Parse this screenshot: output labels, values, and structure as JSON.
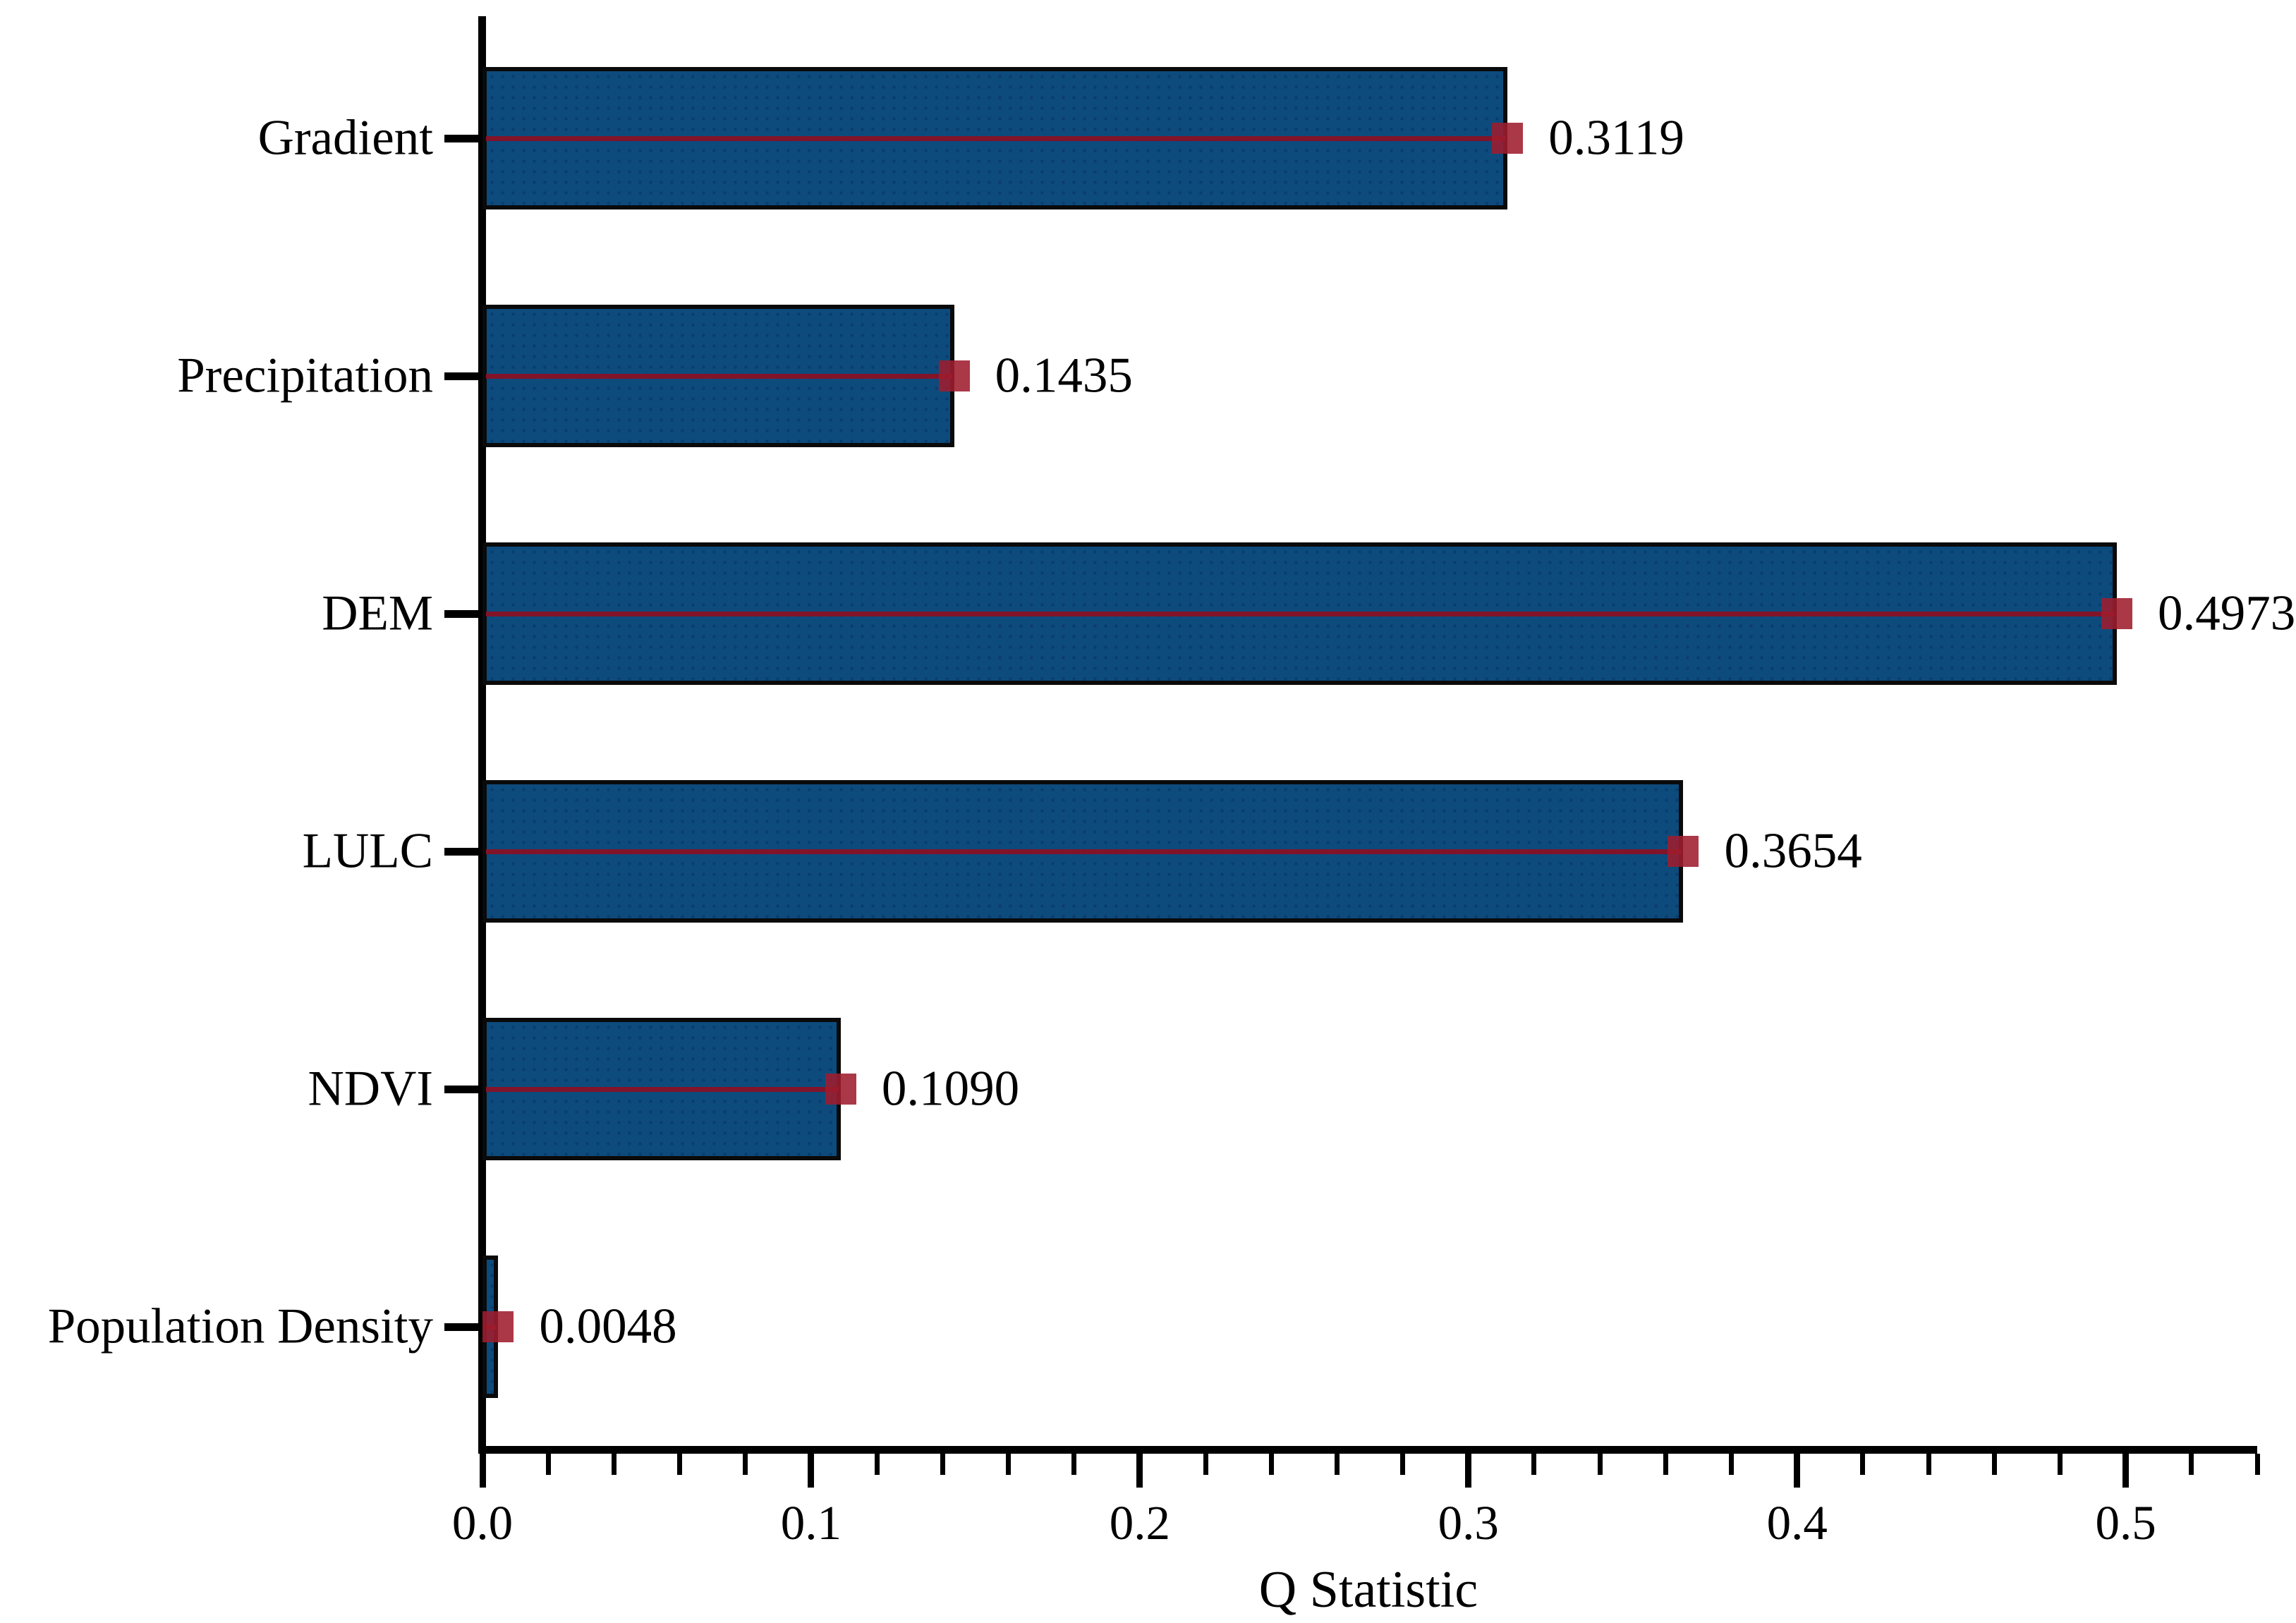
{
  "chart_data": {
    "type": "bar",
    "orientation": "horizontal",
    "title": "",
    "xlabel": "Q Statistic",
    "ylabel": "",
    "categories": [
      "Gradient",
      "Precipitation",
      "DEM",
      "LULC",
      "NDVI",
      "Population Density"
    ],
    "values": [
      0.3119,
      0.1435,
      0.4973,
      0.3654,
      0.109,
      0.0048
    ],
    "value_labels": [
      "0.3119",
      "0.1435",
      "0.4973",
      "0.3654",
      "0.1090",
      "0.0048"
    ],
    "x_tick_labels": [
      "0.0",
      "0.1",
      "0.2",
      "0.3",
      "0.4",
      "0.5"
    ],
    "x_tick_values": [
      0.0,
      0.1,
      0.2,
      0.3,
      0.4,
      0.5
    ],
    "x_minor_tick_step": 0.02,
    "xlim": [
      0,
      0.54
    ],
    "grid": false,
    "legend": null,
    "colors": {
      "bar_fill": "#0d4b7d",
      "bar_edge": "#0a0a0a",
      "marker_fill": "#9e1c2e",
      "center_line": "#82142a",
      "axis": "#000000",
      "text": "#000000",
      "background": "#ffffff"
    }
  }
}
